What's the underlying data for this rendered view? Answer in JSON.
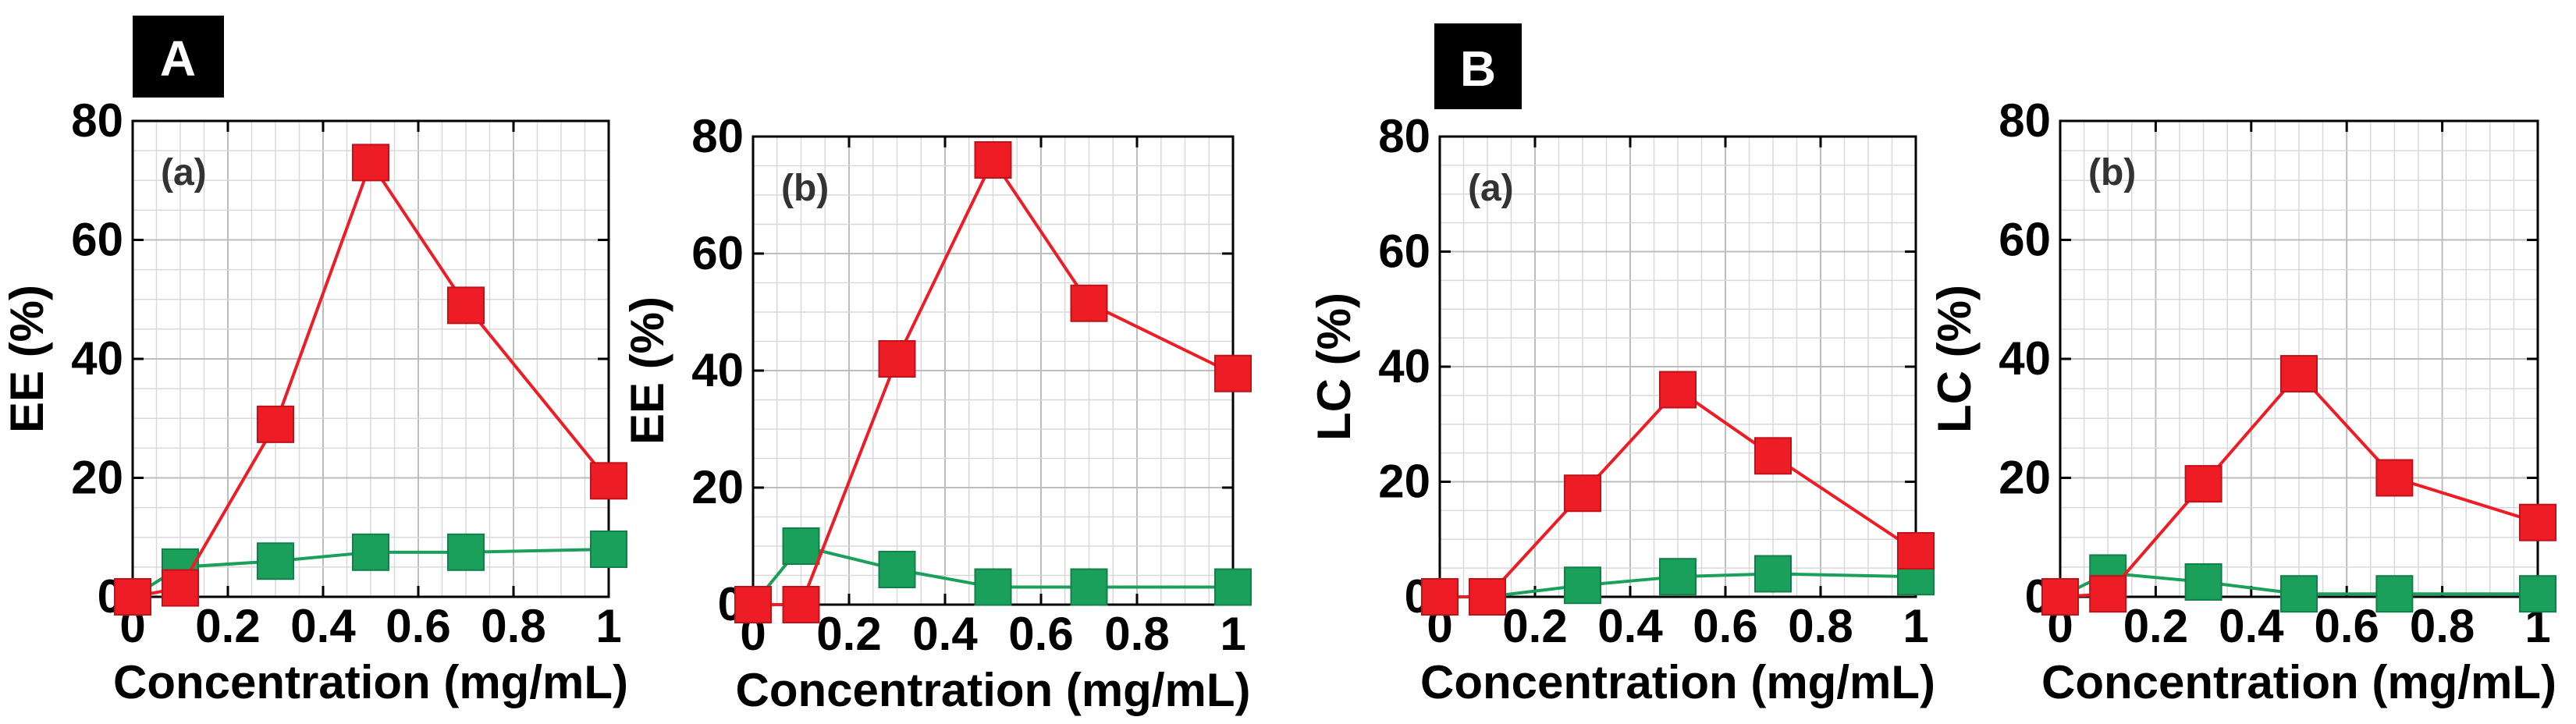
{
  "figure": {
    "panel_labels": [
      "A",
      "B"
    ],
    "colors": {
      "red_series": "#ee1c25",
      "green_series": "#1aa05a",
      "badge": "#000000"
    }
  },
  "chart_data": [
    {
      "type": "line",
      "group": "A",
      "sublabel": "(a)",
      "xlabel": "Concentration (mg/mL)",
      "ylabel": "EE (%)",
      "xlim": [
        0,
        1
      ],
      "ylim": [
        0,
        80
      ],
      "xticks": [
        "0",
        "0.2",
        "0.4",
        "0.6",
        "0.8",
        "1"
      ],
      "yticks": [
        "0",
        "20",
        "40",
        "60",
        "80"
      ],
      "x": [
        0,
        0.1,
        0.3,
        0.5,
        0.7,
        1
      ],
      "series": [
        {
          "name": "red",
          "color": "#ee1c25",
          "values": [
            0,
            1.5,
            29,
            73,
            49,
            19.5
          ]
        },
        {
          "name": "green",
          "color": "#1aa05a",
          "values": [
            0,
            5,
            6,
            7.5,
            7.5,
            8
          ]
        }
      ]
    },
    {
      "type": "line",
      "group": "A",
      "sublabel": "(b)",
      "xlabel": "Concentration (mg/mL)",
      "ylabel": "EE (%)",
      "xlim": [
        0,
        1
      ],
      "ylim": [
        0,
        80
      ],
      "xticks": [
        "0",
        "0.2",
        "0.4",
        "0.6",
        "0.8",
        "1"
      ],
      "yticks": [
        "0",
        "20",
        "40",
        "60",
        "80"
      ],
      "x": [
        0,
        0.1,
        0.3,
        0.5,
        0.7,
        1
      ],
      "series": [
        {
          "name": "red",
          "color": "#ee1c25",
          "values": [
            0,
            0,
            42,
            76,
            51.5,
            39.5
          ]
        },
        {
          "name": "green",
          "color": "#1aa05a",
          "values": [
            0,
            10,
            6,
            3,
            3,
            3
          ]
        }
      ]
    },
    {
      "type": "line",
      "group": "B",
      "sublabel": "(a)",
      "xlabel": "Concentration (mg/mL)",
      "ylabel": "LC (%)",
      "xlim": [
        0,
        1
      ],
      "ylim": [
        0,
        80
      ],
      "xticks": [
        "0",
        "0.2",
        "0.4",
        "0.6",
        "0.8",
        "1"
      ],
      "yticks": [
        "0",
        "20",
        "40",
        "60",
        "80"
      ],
      "x": [
        0,
        0.1,
        0.3,
        0.5,
        0.7,
        1
      ],
      "series": [
        {
          "name": "red",
          "color": "#ee1c25",
          "values": [
            0,
            0,
            18,
            36,
            24.5,
            8
          ]
        },
        {
          "name": "green",
          "color": "#1aa05a",
          "values": [
            0,
            0,
            2,
            3.5,
            4,
            3.5
          ]
        }
      ]
    },
    {
      "type": "line",
      "group": "B",
      "sublabel": "(b)",
      "xlabel": "Concentration (mg/mL)",
      "ylabel": "LC (%)",
      "xlim": [
        0,
        1
      ],
      "ylim": [
        0,
        80
      ],
      "xticks": [
        "0",
        "0.2",
        "0.4",
        "0.6",
        "0.8",
        "1"
      ],
      "yticks": [
        "0",
        "20",
        "40",
        "60",
        "80"
      ],
      "x": [
        0,
        0.1,
        0.3,
        0.5,
        0.7,
        1
      ],
      "series": [
        {
          "name": "red",
          "color": "#ee1c25",
          "values": [
            0,
            0.5,
            19,
            37.5,
            20,
            12.5
          ]
        },
        {
          "name": "green",
          "color": "#1aa05a",
          "values": [
            0,
            4,
            2.5,
            0.5,
            0.5,
            0.5
          ]
        }
      ]
    }
  ]
}
